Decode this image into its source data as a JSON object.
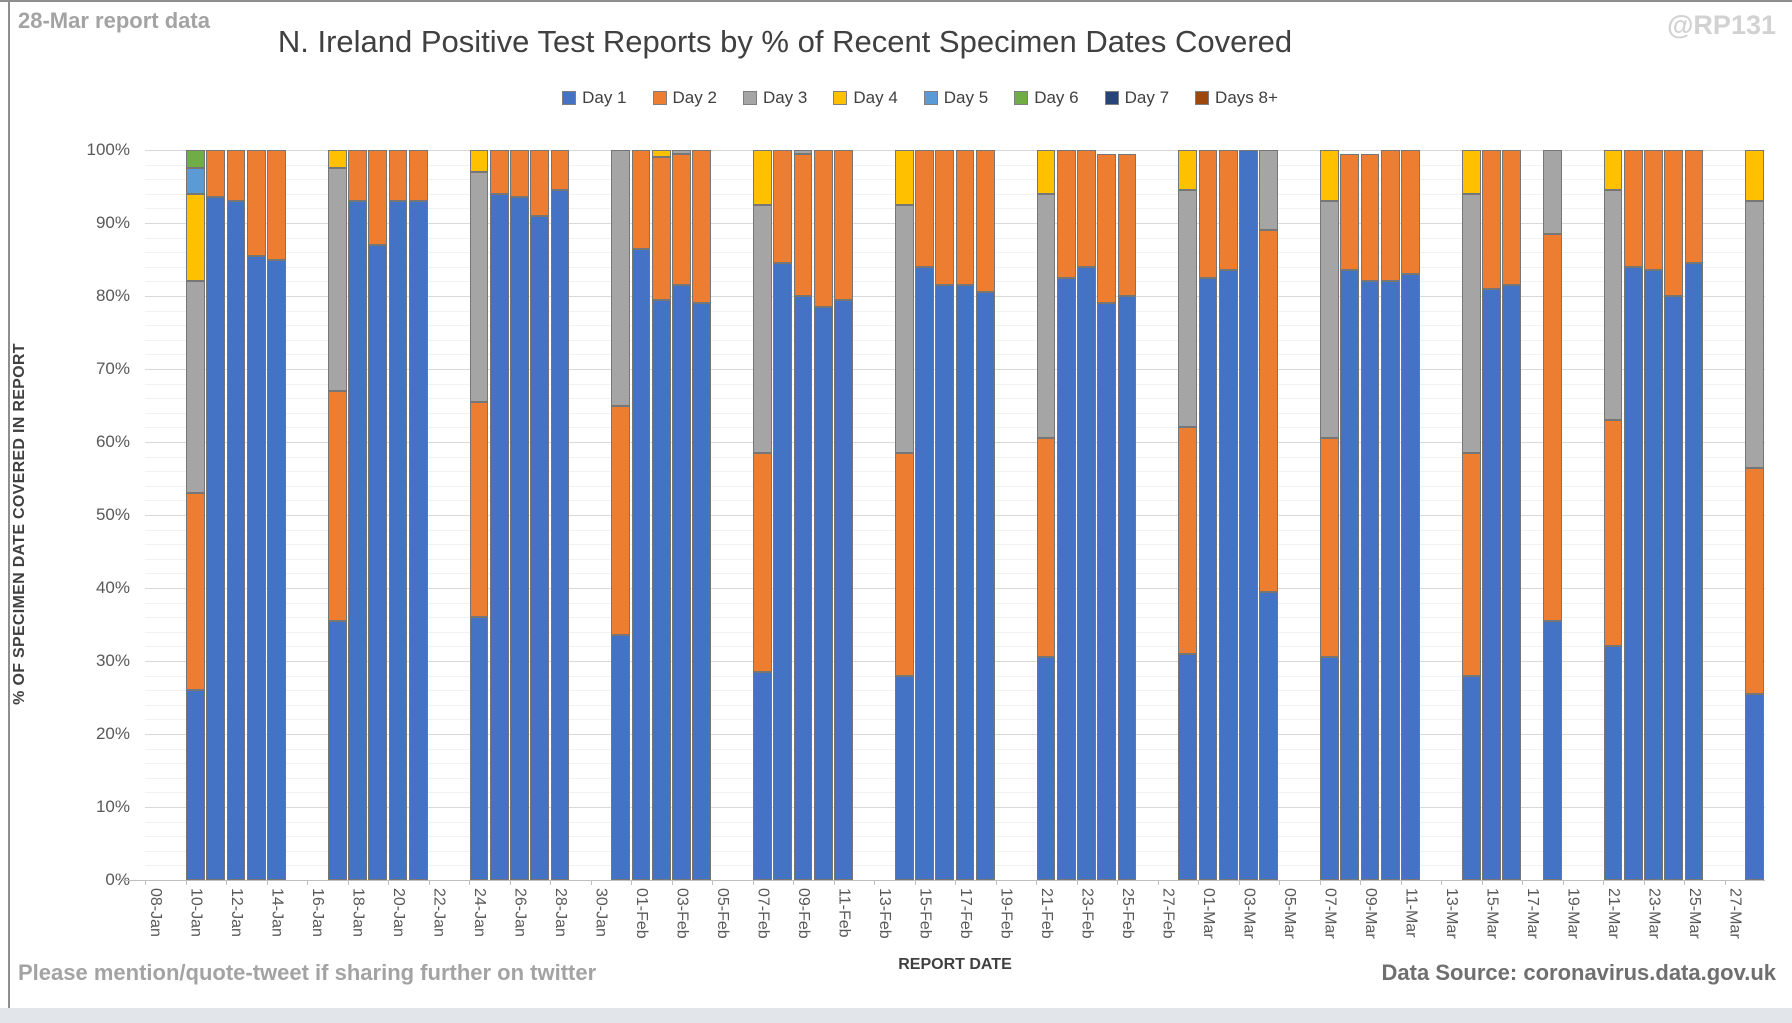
{
  "header": {
    "annotation": "28-Mar report data",
    "title": "N. Ireland Positive Test Reports by % of Recent Specimen Dates Covered",
    "watermark": "@RP131"
  },
  "footer": {
    "left_note": "Please mention/quote-tweet if sharing further on twitter",
    "right_note": "Data Source: coronavirus.data.gov.uk"
  },
  "chart_data": {
    "type": "bar",
    "subtype": "stacked-percent-column",
    "title": "N. Ireland Positive Test Reports by % of Recent Specimen Dates Covered",
    "xlabel": "REPORT DATE",
    "ylabel": "% OF SPECIMEN DATE COVERED IN REPORT",
    "ylim": [
      0,
      100
    ],
    "grid": "minor 2% / major 10%",
    "legend_position": "top",
    "series_names": [
      "Day 1",
      "Day 2",
      "Day 3",
      "Day 4",
      "Day 5",
      "Day 6",
      "Day 7",
      "Days 8+"
    ],
    "series_colors": [
      "#4472C4",
      "#ED7D31",
      "#A5A5A5",
      "#FFC000",
      "#5B9BD5",
      "#70AD47",
      "#264478",
      "#9E480E"
    ],
    "y_ticks": [
      "0%",
      "10%",
      "20%",
      "30%",
      "40%",
      "50%",
      "60%",
      "70%",
      "80%",
      "90%",
      "100%"
    ],
    "n_slots": 80,
    "x_tick_labels": [
      "08-Jan",
      "10-Jan",
      "12-Jan",
      "14-Jan",
      "16-Jan",
      "18-Jan",
      "20-Jan",
      "22-Jan",
      "24-Jan",
      "26-Jan",
      "28-Jan",
      "30-Jan",
      "01-Feb",
      "03-Feb",
      "05-Feb",
      "07-Feb",
      "09-Feb",
      "11-Feb",
      "13-Feb",
      "15-Feb",
      "17-Feb",
      "19-Feb",
      "21-Feb",
      "23-Feb",
      "25-Feb",
      "27-Feb",
      "01-Mar",
      "03-Mar",
      "05-Mar",
      "07-Mar",
      "09-Mar",
      "11-Mar",
      "13-Mar",
      "15-Mar",
      "17-Mar",
      "19-Mar",
      "21-Mar",
      "23-Mar",
      "25-Mar",
      "27-Mar"
    ],
    "x_tick_interval": 2,
    "bars": [
      {
        "date": "10-Jan",
        "slot": 2,
        "values": [
          26,
          27,
          29,
          12,
          3.5,
          2.5
        ]
      },
      {
        "date": "11-Jan",
        "slot": 3,
        "values": [
          93.5,
          6.5
        ]
      },
      {
        "date": "12-Jan",
        "slot": 4,
        "values": [
          93,
          7
        ]
      },
      {
        "date": "13-Jan",
        "slot": 5,
        "values": [
          85.5,
          14.5
        ]
      },
      {
        "date": "14-Jan",
        "slot": 6,
        "values": [
          85,
          15
        ]
      },
      {
        "date": "17-Jan",
        "slot": 9,
        "values": [
          35.5,
          31.5,
          30.5,
          2.5
        ]
      },
      {
        "date": "18-Jan",
        "slot": 10,
        "values": [
          93,
          7
        ]
      },
      {
        "date": "19-Jan",
        "slot": 11,
        "values": [
          87,
          13
        ]
      },
      {
        "date": "20-Jan",
        "slot": 12,
        "values": [
          93,
          7
        ]
      },
      {
        "date": "21-Jan",
        "slot": 13,
        "values": [
          93,
          7
        ]
      },
      {
        "date": "24-Jan",
        "slot": 16,
        "values": [
          36,
          29.5,
          31.5,
          3
        ]
      },
      {
        "date": "25-Jan",
        "slot": 17,
        "values": [
          94,
          6
        ]
      },
      {
        "date": "26-Jan",
        "slot": 18,
        "values": [
          93.5,
          6.5
        ]
      },
      {
        "date": "27-Jan",
        "slot": 19,
        "values": [
          91,
          9
        ]
      },
      {
        "date": "28-Jan",
        "slot": 20,
        "values": [
          94.5,
          5.5
        ]
      },
      {
        "date": "31-Jan",
        "slot": 23,
        "values": [
          33.5,
          31.5,
          35
        ]
      },
      {
        "date": "01-Feb",
        "slot": 24,
        "values": [
          86.5,
          13.5
        ]
      },
      {
        "date": "02-Feb",
        "slot": 25,
        "values": [
          79.5,
          19.5,
          0,
          1
        ]
      },
      {
        "date": "03-Feb",
        "slot": 26,
        "values": [
          81.5,
          18,
          0.5
        ]
      },
      {
        "date": "04-Feb",
        "slot": 27,
        "values": [
          79,
          21
        ]
      },
      {
        "date": "07-Feb",
        "slot": 30,
        "values": [
          28.5,
          30,
          34,
          7.5
        ]
      },
      {
        "date": "08-Feb",
        "slot": 31,
        "values": [
          84.5,
          15.5
        ]
      },
      {
        "date": "09-Feb",
        "slot": 32,
        "values": [
          80,
          19.5,
          0.5
        ]
      },
      {
        "date": "10-Feb",
        "slot": 33,
        "values": [
          78.5,
          21.5
        ]
      },
      {
        "date": "11-Feb",
        "slot": 34,
        "values": [
          79.5,
          20.5
        ]
      },
      {
        "date": "14-Feb",
        "slot": 37,
        "values": [
          28,
          30.5,
          34,
          7.5
        ]
      },
      {
        "date": "15-Feb",
        "slot": 38,
        "values": [
          84,
          16
        ]
      },
      {
        "date": "16-Feb",
        "slot": 39,
        "values": [
          81.5,
          18.5
        ]
      },
      {
        "date": "17-Feb",
        "slot": 40,
        "values": [
          81.5,
          18.5
        ]
      },
      {
        "date": "18-Feb",
        "slot": 41,
        "values": [
          80.5,
          19.5
        ]
      },
      {
        "date": "21-Feb",
        "slot": 44,
        "values": [
          30.5,
          30,
          33.5,
          6
        ]
      },
      {
        "date": "22-Feb",
        "slot": 45,
        "values": [
          82.5,
          17.5
        ]
      },
      {
        "date": "23-Feb",
        "slot": 46,
        "values": [
          84,
          16
        ]
      },
      {
        "date": "24-Feb",
        "slot": 47,
        "values": [
          79,
          20.4
        ]
      },
      {
        "date": "25-Feb",
        "slot": 48,
        "values": [
          80,
          19.5
        ]
      },
      {
        "date": "28-Feb",
        "slot": 51,
        "values": [
          31,
          31,
          32.5,
          5.5
        ]
      },
      {
        "date": "01-Mar",
        "slot": 52,
        "values": [
          82.5,
          17.5
        ]
      },
      {
        "date": "02-Mar",
        "slot": 53,
        "values": [
          83.5,
          16.5
        ]
      },
      {
        "date": "03-Mar",
        "slot": 54,
        "values": [
          100
        ]
      },
      {
        "date": "04-Mar",
        "slot": 55,
        "values": [
          39.5,
          49.5,
          11
        ]
      },
      {
        "date": "07-Mar",
        "slot": 58,
        "values": [
          30.5,
          30,
          32.5,
          7
        ]
      },
      {
        "date": "08-Mar",
        "slot": 59,
        "values": [
          83.5,
          16
        ]
      },
      {
        "date": "09-Mar",
        "slot": 60,
        "values": [
          82,
          17.5
        ]
      },
      {
        "date": "10-Mar",
        "slot": 61,
        "values": [
          82,
          18
        ]
      },
      {
        "date": "11-Mar",
        "slot": 62,
        "values": [
          83,
          17
        ]
      },
      {
        "date": "14-Mar",
        "slot": 65,
        "values": [
          28,
          30.5,
          35.5,
          6
        ]
      },
      {
        "date": "15-Mar",
        "slot": 66,
        "values": [
          81,
          19
        ]
      },
      {
        "date": "16-Mar",
        "slot": 67,
        "values": [
          81.5,
          18.5
        ]
      },
      {
        "date": "18-Mar",
        "slot": 69,
        "values": [
          35.5,
          53,
          11.5
        ]
      },
      {
        "date": "21-Mar",
        "slot": 72,
        "values": [
          32,
          31,
          31.5,
          5.5
        ]
      },
      {
        "date": "22-Mar",
        "slot": 73,
        "values": [
          84,
          16
        ]
      },
      {
        "date": "23-Mar",
        "slot": 74,
        "values": [
          83.5,
          16.5
        ]
      },
      {
        "date": "24-Mar",
        "slot": 75,
        "values": [
          80,
          20
        ]
      },
      {
        "date": "25-Mar",
        "slot": 76,
        "values": [
          84.5,
          15.5
        ]
      },
      {
        "date": "28-Mar",
        "slot": 79,
        "values": [
          25.5,
          31,
          36.5,
          7
        ]
      }
    ]
  }
}
